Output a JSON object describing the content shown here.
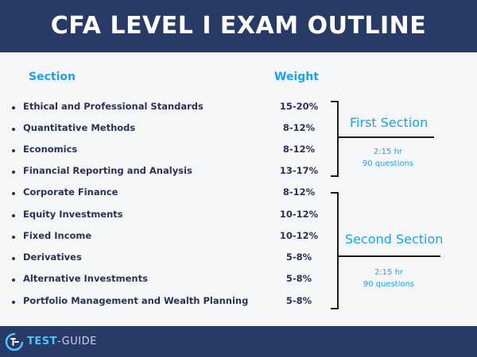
{
  "title": "CFA LEVEL I EXAM OUTLINE",
  "headers": {
    "section": "Section",
    "weight": "Weight"
  },
  "rows": [
    {
      "name": "Ethical and Professional Standards",
      "weight": "15-20%"
    },
    {
      "name": "Quantitative Methods",
      "weight": "8-12%"
    },
    {
      "name": "Economics",
      "weight": "8-12%"
    },
    {
      "name": "Financial Reporting and Analysis",
      "weight": "13-17%"
    },
    {
      "name": "Corporate Finance",
      "weight": "8-12%"
    },
    {
      "name": "Equity Investments",
      "weight": "10-12%"
    },
    {
      "name": "Fixed Income",
      "weight": "10-12%"
    },
    {
      "name": "Derivatives",
      "weight": "5-8%"
    },
    {
      "name": "Alternative Investments",
      "weight": "5-8%"
    },
    {
      "name": "Portfolio Management and Wealth Planning",
      "weight": "5-8%"
    }
  ],
  "groups": [
    {
      "title": "First Section",
      "duration": "2:15 hr",
      "questions": "90 questions"
    },
    {
      "title": "Second Section",
      "duration": "2:15 hr",
      "questions": "90 questions"
    }
  ],
  "footer": {
    "brand_part1": "TEST",
    "brand_part2": "-GUIDE"
  },
  "colors": {
    "navy": "#283a66",
    "accent": "#1aa3e8",
    "text": "#2a3352"
  }
}
